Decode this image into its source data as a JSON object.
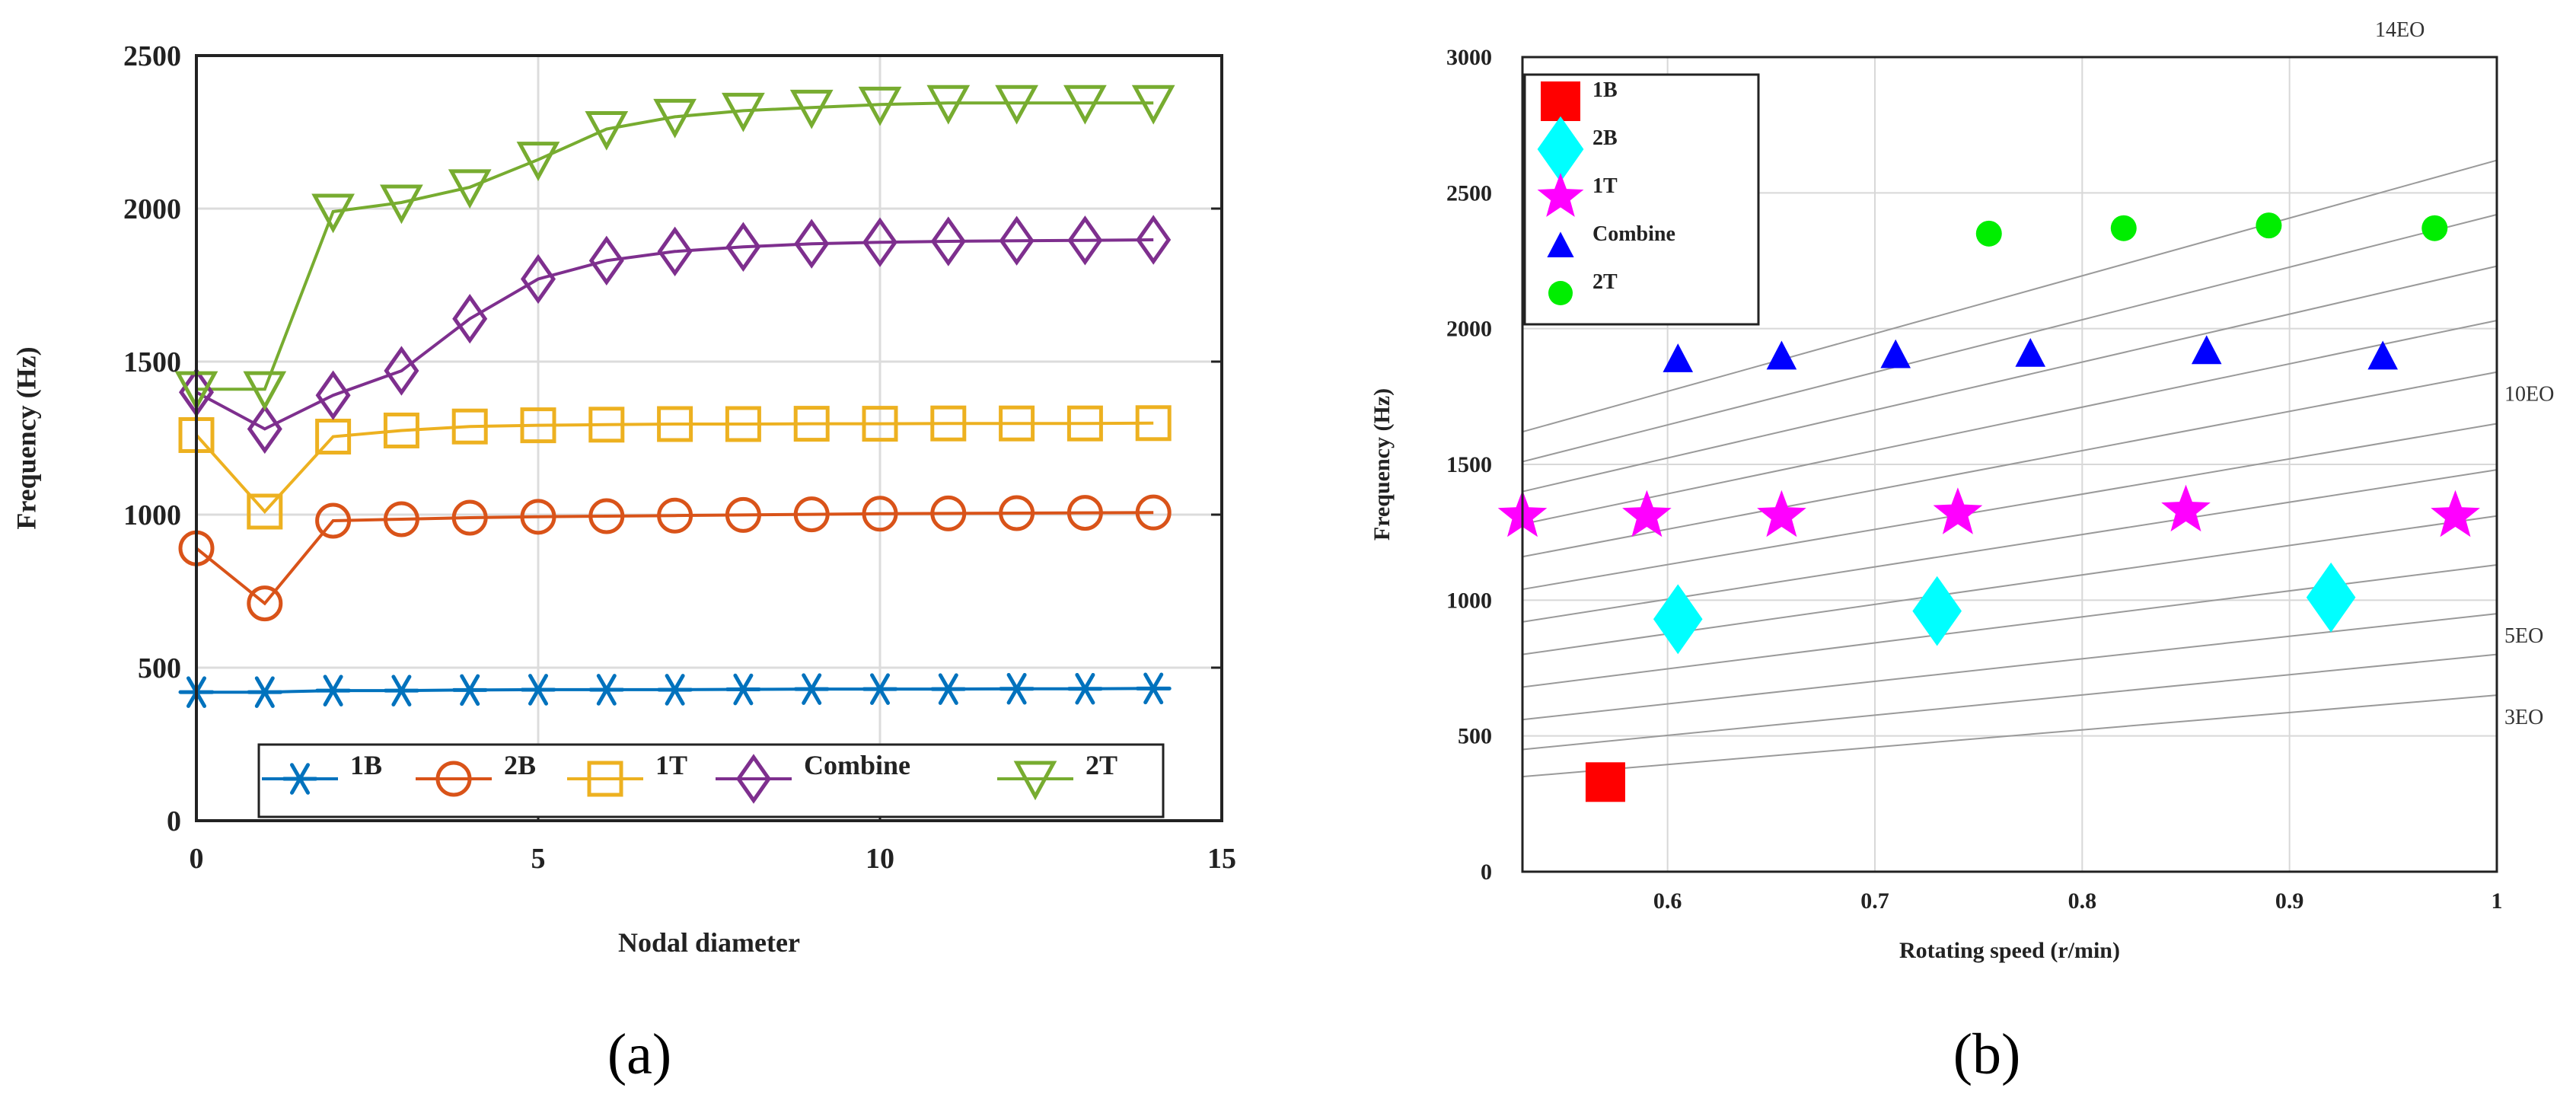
{
  "chart_data": [
    {
      "id": "a",
      "type": "line",
      "panel_label": "(a)",
      "xlabel": "Nodal diameter",
      "ylabel": "Frequency (Hz)",
      "xlim": [
        0,
        15
      ],
      "ylim": [
        0,
        2500
      ],
      "xticks": [
        0,
        5,
        10,
        15
      ],
      "yticks": [
        0,
        500,
        1000,
        1500,
        2000,
        2500
      ],
      "grid": true,
      "legend_position": "bottom",
      "x": [
        0,
        1,
        2,
        3,
        4,
        5,
        6,
        7,
        8,
        9,
        10,
        11,
        12,
        13,
        14
      ],
      "series": [
        {
          "name": "1B",
          "color": "#0072BD",
          "marker": "asterisk",
          "values": [
            420,
            420,
            425,
            425,
            427,
            428,
            428,
            428,
            429,
            430,
            430,
            430,
            431,
            431,
            432
          ]
        },
        {
          "name": "2B",
          "color": "#D95319",
          "marker": "circle",
          "values": [
            890,
            710,
            980,
            985,
            990,
            993,
            995,
            997,
            999,
            1001,
            1003,
            1004,
            1005,
            1006,
            1007
          ]
        },
        {
          "name": "1T",
          "color": "#EDB120",
          "marker": "square",
          "values": [
            1260,
            1010,
            1255,
            1275,
            1288,
            1292,
            1294,
            1296,
            1296,
            1297,
            1297,
            1298,
            1298,
            1298,
            1299
          ]
        },
        {
          "name": "Combine",
          "color": "#7E2F8E",
          "marker": "diamond",
          "values": [
            1400,
            1280,
            1390,
            1470,
            1640,
            1770,
            1830,
            1860,
            1875,
            1885,
            1890,
            1893,
            1895,
            1896,
            1898
          ]
        },
        {
          "name": "2T",
          "color": "#77AC30",
          "marker": "triangle-down",
          "values": [
            1410,
            1410,
            1990,
            2020,
            2070,
            2160,
            2260,
            2300,
            2320,
            2330,
            2340,
            2345,
            2345,
            2345,
            2345
          ]
        }
      ]
    },
    {
      "id": "b",
      "type": "scatter",
      "panel_label": "(b)",
      "xlabel": "Rotating speed (r/min)",
      "ylabel": "Frequency (Hz)",
      "xlim": [
        0.53,
        1.0
      ],
      "ylim": [
        0,
        3000
      ],
      "xticks": [
        0.6,
        0.7,
        0.8,
        0.9,
        1
      ],
      "xtick_labels": [
        "0.6",
        "0.7",
        "0.8",
        "0.9",
        "1"
      ],
      "yticks": [
        0,
        500,
        1000,
        1500,
        2000,
        2500,
        3000
      ],
      "grid": true,
      "legend_position": "top-left",
      "series": [
        {
          "name": "1B",
          "color": "#FF0000",
          "marker": "square",
          "x": [
            0.57
          ],
          "y": [
            330
          ]
        },
        {
          "name": "2B",
          "color": "#00FFFF",
          "marker": "diamond",
          "x": [
            0.605,
            0.73,
            0.92
          ],
          "y": [
            930,
            960,
            1010
          ]
        },
        {
          "name": "1T",
          "color": "#FF00FF",
          "marker": "pentagram",
          "x": [
            0.53,
            0.59,
            0.655,
            0.74,
            0.85,
            0.98
          ],
          "y": [
            1310,
            1310,
            1310,
            1320,
            1330,
            1310
          ]
        },
        {
          "name": "Combine",
          "color": "#0000FF",
          "marker": "triangle-up",
          "x": [
            0.605,
            0.655,
            0.71,
            0.775,
            0.86,
            0.945
          ],
          "y": [
            1890,
            1900,
            1905,
            1910,
            1920,
            1900
          ]
        },
        {
          "name": "2T",
          "color": "#00EE00",
          "marker": "circle",
          "x": [
            0.755,
            0.82,
            0.89,
            0.97
          ],
          "y": [
            2350,
            2370,
            2380,
            2370
          ]
        }
      ],
      "eo_lines": {
        "orders": [
          3,
          4,
          5,
          6,
          7,
          8,
          9,
          10,
          11,
          12,
          13,
          14
        ],
        "start": [
          350,
          450,
          560,
          680,
          800,
          920,
          1040,
          1160,
          1280,
          1400,
          1510,
          1620
        ],
        "end": [
          650,
          800,
          950,
          1130,
          1310,
          1480,
          1650,
          1840,
          2030,
          2230,
          2420,
          2620
        ],
        "labels": [
          {
            "text": "3EO",
            "order": 3
          },
          {
            "text": "5EO",
            "order": 5
          },
          {
            "text": "10EO",
            "order": 10
          },
          {
            "text": "14EO",
            "order": 14
          }
        ]
      }
    }
  ]
}
